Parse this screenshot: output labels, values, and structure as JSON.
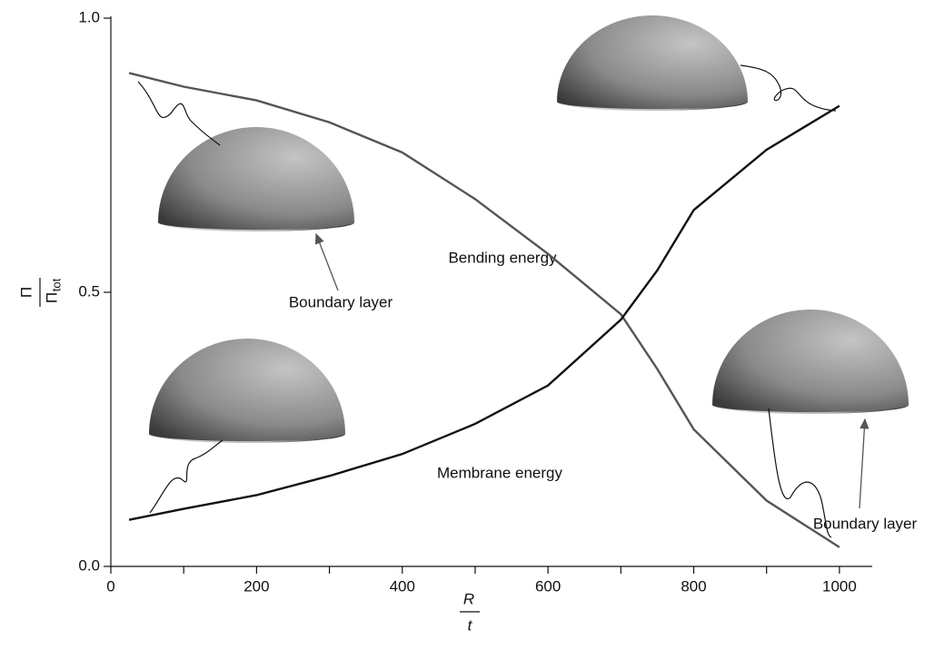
{
  "chart_data": {
    "type": "line",
    "x_label": {
      "numerator": "R",
      "denominator": "t"
    },
    "y_label": {
      "numerator": "Π",
      "denominator": "Π",
      "denominator_subscript": "tot"
    },
    "annotations": [
      "Bending energy",
      "Boundary layer",
      "Membrane energy",
      "Boundary layer"
    ],
    "x": [
      25,
      100,
      200,
      300,
      400,
      500,
      600,
      700,
      750,
      800,
      900,
      1000
    ],
    "series": [
      {
        "color": "#555555",
        "values": [
          0.9,
          0.875,
          0.85,
          0.81,
          0.755,
          0.67,
          0.57,
          0.46,
          0.36,
          0.25,
          0.12,
          0.035
        ]
      },
      {
        "color": "#111111",
        "values": [
          0.085,
          0.105,
          0.13,
          0.165,
          0.205,
          0.26,
          0.33,
          0.45,
          0.54,
          0.65,
          0.76,
          0.84
        ]
      }
    ],
    "xlim": [
      0,
      1045
    ],
    "ylim": [
      0,
      1
    ],
    "xticks": [
      0,
      200,
      400,
      600,
      800,
      1000
    ],
    "xticks_minor": [
      100,
      300,
      500,
      700,
      900
    ],
    "yticks": [
      {
        "value": 0,
        "label": "0.0"
      },
      0.5,
      {
        "value": 1,
        "label": "1.0"
      }
    ]
  }
}
